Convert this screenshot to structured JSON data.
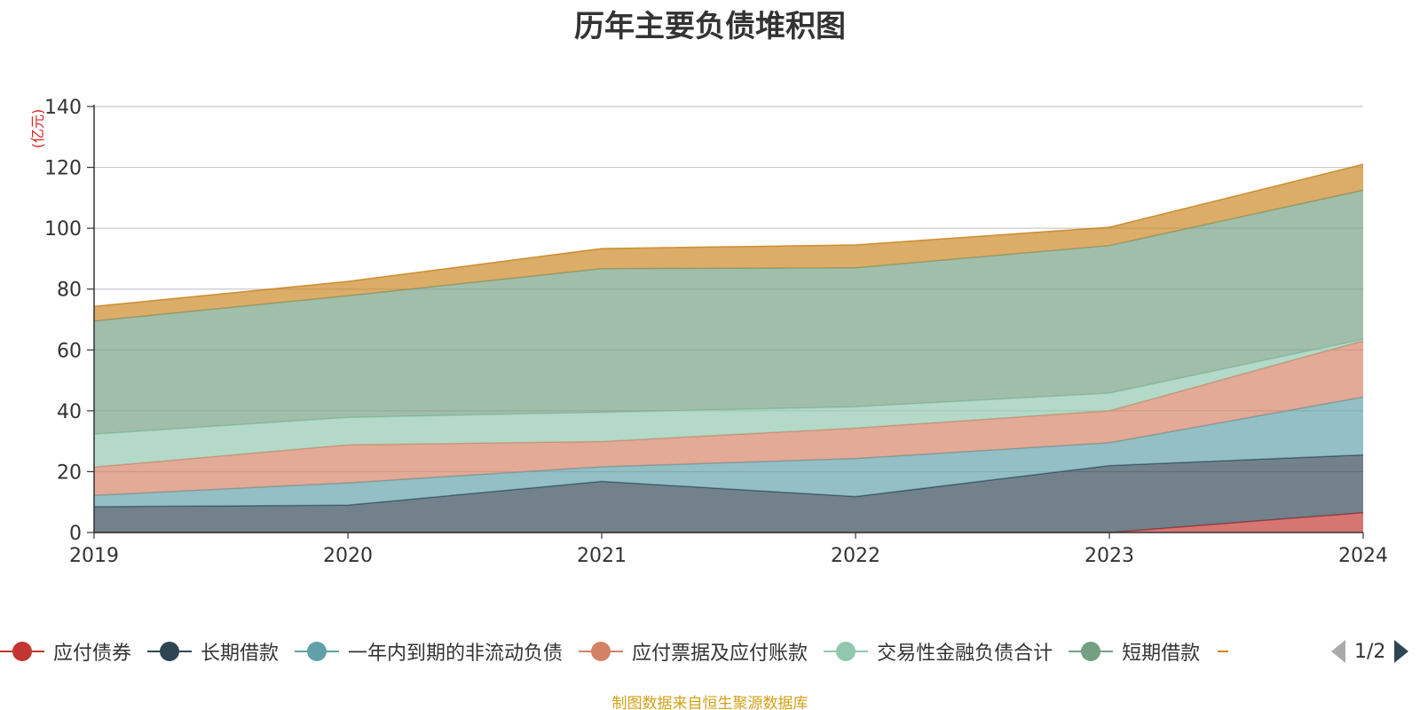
{
  "chart_data": {
    "type": "area",
    "stacked": true,
    "title": "历年主要负债堆积图",
    "ylabel": "(亿元)",
    "xlabel": "",
    "x": [
      "2019",
      "2020",
      "2021",
      "2022",
      "2023",
      "2024"
    ],
    "ylim": [
      0,
      140
    ],
    "yticks": [
      0,
      20,
      40,
      60,
      80,
      100,
      120,
      140
    ],
    "grid": true,
    "series": [
      {
        "name": "应付债券",
        "color": "#c23531",
        "values": [
          0,
          0,
          0,
          0,
          0,
          6.5
        ]
      },
      {
        "name": "长期借款",
        "color": "#2f4554",
        "values": [
          8.5,
          9,
          16.8,
          11.8,
          22,
          19
        ]
      },
      {
        "name": "一年内到期的非流动负债",
        "color": "#61a0a8",
        "values": [
          3.7,
          7.3,
          4.8,
          12.5,
          7.5,
          19
        ]
      },
      {
        "name": "应付票据及应付账款",
        "color": "#d48265",
        "values": [
          9.3,
          12.5,
          8.3,
          10,
          10.5,
          18.5
        ]
      },
      {
        "name": "交易性金融负债合计",
        "color": "#91c7ae",
        "values": [
          10.8,
          9,
          9.6,
          7,
          5.8,
          0.5
        ]
      },
      {
        "name": "短期借款",
        "color": "#749f83",
        "values": [
          37.2,
          40,
          47.2,
          45.7,
          48.5,
          49
        ]
      },
      {
        "name": "",
        "color": "#ca8622",
        "values": [
          4.8,
          4.7,
          6.6,
          7.5,
          6,
          8.5
        ]
      }
    ],
    "legend": {
      "position": "bottom",
      "page": "1/2",
      "items": [
        "应付债券",
        "长期借款",
        "一年内到期的非流动负债",
        "应付票据及应付账款",
        "交易性金融负债合计",
        "短期借款"
      ]
    }
  },
  "source": "制图数据来自恒生聚源数据库",
  "colors": {
    "axis": "#333333",
    "grid": "#c8c8d0",
    "ylabel": "#e02020",
    "pager_active": "#2f4554",
    "pager_inactive": "#aaaaaa"
  }
}
